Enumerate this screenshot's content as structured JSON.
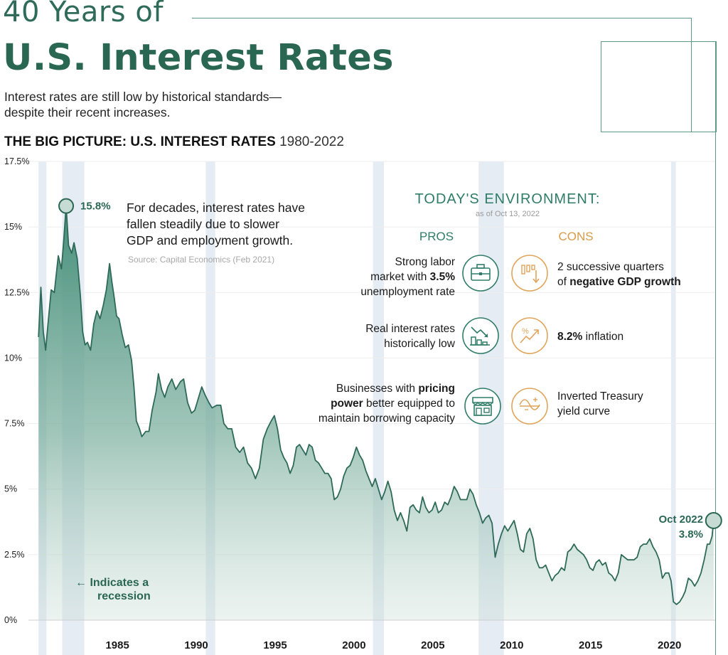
{
  "header": {
    "title_light": "40 Years of",
    "title_bold": "U.S. Interest Rates",
    "subtitle": "Interest rates are still low by historical standards—despite their recent increases.",
    "section_label": "THE BIG PICTURE: U.S. INTEREST RATES",
    "section_years": "1980-2022"
  },
  "annotations": {
    "peak_label": "15.8%",
    "note_line1": "For decades, interest rates have",
    "note_line2": "fallen steadily due to slower",
    "note_line3": "GDP and employment growth.",
    "source": "Source: Capital Economics (Feb 2021)",
    "legend_line1": "← Indicates a",
    "legend_line2": "recession",
    "end_date": "Oct 2022",
    "end_value": "3.8%"
  },
  "environment": {
    "title": "TODAY'S ENVIRONMENT:",
    "date": "as of Oct 13, 2022",
    "pros_label": "PROS",
    "cons_label": "CONS",
    "pros": [
      {
        "icon": "briefcase-icon",
        "lines": [
          [
            "Strong labor"
          ],
          [
            "market with ",
            "3.5%"
          ],
          [
            "unemployment rate"
          ]
        ]
      },
      {
        "icon": "falling-chart-icon",
        "lines": [
          [
            "Real interest rates"
          ],
          [
            "historically low"
          ]
        ]
      },
      {
        "icon": "storefront-icon",
        "lines": [
          [
            "Businesses with ",
            "pricing"
          ],
          [
            "",
            "power",
            " better equipped to"
          ],
          [
            "maintain borrowing capacity"
          ]
        ]
      }
    ],
    "cons": [
      {
        "icon": "declining-bars-icon",
        "lines": [
          [
            "2 successive quarters"
          ],
          [
            "of ",
            "negative GDP growth"
          ]
        ]
      },
      {
        "icon": "rising-percent-icon",
        "lines": [
          [
            "",
            "8.2%",
            " inflation"
          ]
        ]
      },
      {
        "icon": "inverted-curve-icon",
        "lines": [
          [
            "Inverted Treasury"
          ],
          [
            "yield curve"
          ]
        ]
      }
    ]
  },
  "colors": {
    "accent": "#2a6753",
    "line": "#2e6a57",
    "pros": "#2f7d68",
    "cons": "#e0a45a",
    "recession": "#dde6f0",
    "frame": "#5a9a87"
  },
  "chart_data": {
    "type": "area",
    "title": "THE BIG PICTURE: U.S. INTEREST RATES 1980-2022",
    "xlabel": "",
    "ylabel": "",
    "xlim": [
      1979.9,
      2022.9
    ],
    "ylim": [
      0,
      17.5
    ],
    "y_ticks": [
      0,
      2.5,
      5,
      7.5,
      10,
      12.5,
      15,
      17.5
    ],
    "y_tick_labels": [
      "0%",
      "2.5%",
      "5%",
      "7.5%",
      "10%",
      "12.5%",
      "15%",
      "17.5%"
    ],
    "x_ticks": [
      1985,
      1990,
      1995,
      2000,
      2005,
      2010,
      2015,
      2020
    ],
    "x_tick_labels": [
      "1985",
      "1990",
      "1995",
      "2000",
      "2005",
      "2010",
      "2015",
      "2020"
    ],
    "recessions": [
      [
        1980.0,
        1980.5
      ],
      [
        1981.5,
        1982.9
      ],
      [
        1990.6,
        1991.2
      ],
      [
        2001.2,
        2001.9
      ],
      [
        2007.9,
        2009.5
      ],
      [
        2020.1,
        2020.4
      ]
    ],
    "series": [
      {
        "name": "U.S. interest rate",
        "points": [
          [
            1980.0,
            10.8
          ],
          [
            1980.15,
            12.7
          ],
          [
            1980.3,
            11.0
          ],
          [
            1980.45,
            10.3
          ],
          [
            1980.6,
            11.3
          ],
          [
            1980.8,
            12.6
          ],
          [
            1981.0,
            12.5
          ],
          [
            1981.25,
            13.9
          ],
          [
            1981.45,
            13.4
          ],
          [
            1981.6,
            14.5
          ],
          [
            1981.75,
            15.8
          ],
          [
            1981.9,
            14.3
          ],
          [
            1982.1,
            14.0
          ],
          [
            1982.25,
            14.4
          ],
          [
            1982.45,
            13.8
          ],
          [
            1982.65,
            12.4
          ],
          [
            1982.8,
            11.0
          ],
          [
            1982.95,
            10.5
          ],
          [
            1983.1,
            10.6
          ],
          [
            1983.3,
            10.3
          ],
          [
            1983.5,
            11.3
          ],
          [
            1983.7,
            11.8
          ],
          [
            1983.9,
            11.5
          ],
          [
            1984.1,
            12.0
          ],
          [
            1984.3,
            12.6
          ],
          [
            1984.5,
            13.6
          ],
          [
            1984.65,
            12.9
          ],
          [
            1984.8,
            12.3
          ],
          [
            1984.95,
            11.6
          ],
          [
            1985.1,
            11.5
          ],
          [
            1985.3,
            10.9
          ],
          [
            1985.5,
            10.4
          ],
          [
            1985.7,
            10.5
          ],
          [
            1985.9,
            9.9
          ],
          [
            1986.05,
            8.9
          ],
          [
            1986.2,
            7.6
          ],
          [
            1986.4,
            7.3
          ],
          [
            1986.55,
            7.0
          ],
          [
            1986.8,
            7.2
          ],
          [
            1987.0,
            7.2
          ],
          [
            1987.2,
            8.0
          ],
          [
            1987.45,
            8.7
          ],
          [
            1987.6,
            9.4
          ],
          [
            1987.8,
            8.8
          ],
          [
            1988.0,
            8.5
          ],
          [
            1988.2,
            8.9
          ],
          [
            1988.45,
            9.2
          ],
          [
            1988.7,
            8.8
          ],
          [
            1989.0,
            9.1
          ],
          [
            1989.2,
            9.2
          ],
          [
            1989.45,
            8.3
          ],
          [
            1989.7,
            7.9
          ],
          [
            1989.9,
            8.0
          ],
          [
            1990.15,
            8.5
          ],
          [
            1990.35,
            8.9
          ],
          [
            1990.55,
            8.6
          ],
          [
            1990.8,
            8.3
          ],
          [
            1991.0,
            8.1
          ],
          [
            1991.3,
            8.2
          ],
          [
            1991.55,
            8.2
          ],
          [
            1991.75,
            7.5
          ],
          [
            1992.0,
            7.3
          ],
          [
            1992.25,
            7.3
          ],
          [
            1992.5,
            6.6
          ],
          [
            1992.75,
            6.4
          ],
          [
            1993.0,
            6.6
          ],
          [
            1993.25,
            6.0
          ],
          [
            1993.5,
            5.8
          ],
          [
            1993.75,
            5.4
          ],
          [
            1994.0,
            5.8
          ],
          [
            1994.25,
            6.9
          ],
          [
            1994.5,
            7.3
          ],
          [
            1994.75,
            7.6
          ],
          [
            1994.95,
            7.8
          ],
          [
            1995.15,
            7.3
          ],
          [
            1995.35,
            6.5
          ],
          [
            1995.55,
            6.2
          ],
          [
            1995.75,
            6.0
          ],
          [
            1995.95,
            5.6
          ],
          [
            1996.15,
            5.9
          ],
          [
            1996.35,
            6.6
          ],
          [
            1996.55,
            6.7
          ],
          [
            1996.75,
            6.5
          ],
          [
            1996.95,
            6.3
          ],
          [
            1997.15,
            6.7
          ],
          [
            1997.35,
            6.6
          ],
          [
            1997.55,
            6.1
          ],
          [
            1997.75,
            6.0
          ],
          [
            1997.95,
            5.8
          ],
          [
            1998.15,
            5.6
          ],
          [
            1998.35,
            5.6
          ],
          [
            1998.55,
            5.4
          ],
          [
            1998.75,
            4.6
          ],
          [
            1998.95,
            4.7
          ],
          [
            1999.15,
            5.0
          ],
          [
            1999.35,
            5.5
          ],
          [
            1999.55,
            5.8
          ],
          [
            1999.75,
            5.9
          ],
          [
            1999.95,
            6.2
          ],
          [
            2000.15,
            6.6
          ],
          [
            2000.35,
            6.3
          ],
          [
            2000.55,
            6.1
          ],
          [
            2000.75,
            5.7
          ],
          [
            2000.95,
            5.4
          ],
          [
            2001.15,
            5.1
          ],
          [
            2001.35,
            5.4
          ],
          [
            2001.55,
            5.0
          ],
          [
            2001.75,
            4.6
          ],
          [
            2001.95,
            4.9
          ],
          [
            2002.15,
            5.3
          ],
          [
            2002.35,
            4.9
          ],
          [
            2002.55,
            4.2
          ],
          [
            2002.75,
            3.8
          ],
          [
            2002.95,
            4.1
          ],
          [
            2003.15,
            3.8
          ],
          [
            2003.35,
            3.4
          ],
          [
            2003.55,
            4.3
          ],
          [
            2003.75,
            4.4
          ],
          [
            2003.95,
            4.2
          ],
          [
            2004.15,
            4.1
          ],
          [
            2004.35,
            4.7
          ],
          [
            2004.55,
            4.3
          ],
          [
            2004.75,
            4.1
          ],
          [
            2004.95,
            4.2
          ],
          [
            2005.15,
            4.5
          ],
          [
            2005.35,
            4.1
          ],
          [
            2005.55,
            4.2
          ],
          [
            2005.75,
            4.5
          ],
          [
            2005.95,
            4.4
          ],
          [
            2006.15,
            4.7
          ],
          [
            2006.35,
            5.1
          ],
          [
            2006.55,
            4.9
          ],
          [
            2006.75,
            4.6
          ],
          [
            2006.95,
            4.6
          ],
          [
            2007.15,
            4.6
          ],
          [
            2007.35,
            5.0
          ],
          [
            2007.55,
            4.8
          ],
          [
            2007.75,
            4.4
          ],
          [
            2007.95,
            4.1
          ],
          [
            2008.15,
            3.7
          ],
          [
            2008.35,
            3.9
          ],
          [
            2008.55,
            4.0
          ],
          [
            2008.75,
            3.7
          ],
          [
            2008.95,
            2.4
          ],
          [
            2009.15,
            2.9
          ],
          [
            2009.35,
            3.3
          ],
          [
            2009.55,
            3.6
          ],
          [
            2009.75,
            3.4
          ],
          [
            2009.95,
            3.6
          ],
          [
            2010.15,
            3.8
          ],
          [
            2010.35,
            3.3
          ],
          [
            2010.55,
            2.7
          ],
          [
            2010.75,
            2.6
          ],
          [
            2010.95,
            3.3
          ],
          [
            2011.15,
            3.5
          ],
          [
            2011.35,
            3.1
          ],
          [
            2011.55,
            2.3
          ],
          [
            2011.75,
            2.0
          ],
          [
            2011.95,
            2.0
          ],
          [
            2012.15,
            2.1
          ],
          [
            2012.35,
            1.8
          ],
          [
            2012.55,
            1.5
          ],
          [
            2012.75,
            1.7
          ],
          [
            2012.95,
            1.8
          ],
          [
            2013.15,
            2.0
          ],
          [
            2013.35,
            1.9
          ],
          [
            2013.55,
            2.6
          ],
          [
            2013.75,
            2.7
          ],
          [
            2013.95,
            2.9
          ],
          [
            2014.15,
            2.7
          ],
          [
            2014.35,
            2.6
          ],
          [
            2014.55,
            2.5
          ],
          [
            2014.75,
            2.3
          ],
          [
            2014.95,
            2.0
          ],
          [
            2015.15,
            1.9
          ],
          [
            2015.35,
            2.2
          ],
          [
            2015.55,
            2.3
          ],
          [
            2015.75,
            2.1
          ],
          [
            2015.95,
            2.2
          ],
          [
            2016.15,
            1.8
          ],
          [
            2016.35,
            1.7
          ],
          [
            2016.55,
            1.5
          ],
          [
            2016.75,
            1.8
          ],
          [
            2016.95,
            2.5
          ],
          [
            2017.15,
            2.4
          ],
          [
            2017.35,
            2.3
          ],
          [
            2017.55,
            2.3
          ],
          [
            2017.75,
            2.3
          ],
          [
            2017.95,
            2.4
          ],
          [
            2018.15,
            2.8
          ],
          [
            2018.35,
            2.9
          ],
          [
            2018.55,
            2.9
          ],
          [
            2018.75,
            3.1
          ],
          [
            2018.95,
            2.8
          ],
          [
            2019.15,
            2.6
          ],
          [
            2019.35,
            2.3
          ],
          [
            2019.55,
            1.6
          ],
          [
            2019.75,
            1.8
          ],
          [
            2019.95,
            1.8
          ],
          [
            2020.1,
            1.5
          ],
          [
            2020.25,
            0.7
          ],
          [
            2020.45,
            0.6
          ],
          [
            2020.65,
            0.7
          ],
          [
            2020.85,
            0.9
          ],
          [
            2021.0,
            1.1
          ],
          [
            2021.2,
            1.6
          ],
          [
            2021.4,
            1.5
          ],
          [
            2021.6,
            1.3
          ],
          [
            2021.8,
            1.5
          ],
          [
            2022.0,
            1.8
          ],
          [
            2022.2,
            2.3
          ],
          [
            2022.4,
            2.9
          ],
          [
            2022.55,
            2.9
          ],
          [
            2022.7,
            3.2
          ],
          [
            2022.8,
            3.8
          ]
        ]
      }
    ]
  }
}
